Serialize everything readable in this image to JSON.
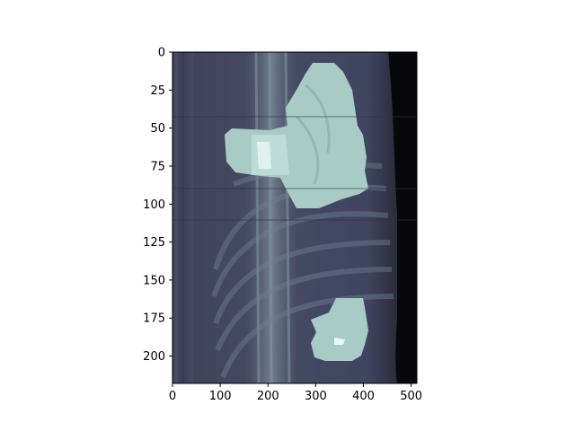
{
  "chart_data": {
    "type": "heatmap",
    "title": "",
    "xlabel": "",
    "ylabel": "",
    "x_ticks": [
      "0",
      "100",
      "200",
      "300",
      "400",
      "500"
    ],
    "y_ticks": [
      "0",
      "25",
      "50",
      "75",
      "100",
      "125",
      "150",
      "175",
      "200"
    ],
    "xlim": [
      0,
      512
    ],
    "ylim": [
      218,
      0
    ],
    "colormap": "bone",
    "image_content": "CT sagittal slice with bright segmented regions overlaid",
    "colors": {
      "background_dark": "#3a3d56",
      "highlight": "#a9ccc7",
      "edge_black": "#050505"
    }
  }
}
